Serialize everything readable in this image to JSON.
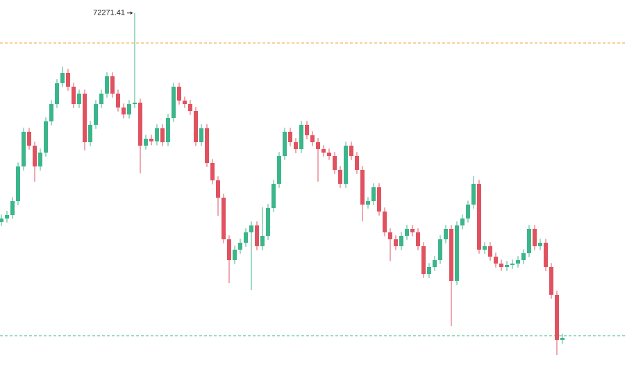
{
  "chart_data": {
    "type": "candlestick",
    "up_color": "#3bb58a",
    "down_color": "#e0525f",
    "ylim": [
      66000,
      72500
    ],
    "open": [
      68590,
      68651,
      68712,
      68957,
      69568,
      70179,
      69934,
      69568,
      69812,
      70362,
      70667,
      71034,
      71217,
      70973,
      70667,
      70851,
      69995,
      70301,
      70667,
      70851,
      71156,
      70851,
      70606,
      70484,
      70667,
      70692,
      69934,
      70056,
      70010,
      70240,
      69995,
      70423,
      70973,
      70728,
      70667,
      70545,
      69995,
      70240,
      69629,
      69323,
      69018,
      68285,
      67918,
      68102,
      68224,
      68407,
      68529,
      68163,
      68346,
      68835,
      69262,
      69751,
      70179,
      69995,
      69873,
      70301,
      70117,
      69995,
      69873,
      69812,
      69751,
      69507,
      69262,
      69934,
      69751,
      69507,
      68896,
      68957,
      69201,
      68774,
      68407,
      68285,
      68163,
      68346,
      68468,
      68407,
      68163,
      67674,
      67796,
      67918,
      68285,
      68468,
      67552,
      68529,
      68651,
      68896,
      69262,
      68102,
      68163,
      67979,
      67857,
      67796,
      67833,
      67857,
      67918,
      68040,
      68468,
      68163,
      68224,
      67796,
      67307,
      66513
    ],
    "high": [
      68721,
      68782,
      69027,
      69638,
      70249,
      70249,
      70004,
      69882,
      70432,
      70737,
      71104,
      71330,
      71287,
      71043,
      70921,
      70921,
      70371,
      70737,
      70921,
      71226,
      71226,
      70921,
      70676,
      70737,
      72271.41,
      70762,
      70126,
      70126,
      70310,
      70310,
      70493,
      71043,
      71043,
      70798,
      70737,
      70615,
      70310,
      70310,
      69699,
      69393,
      69088,
      68355,
      68172,
      68294,
      68477,
      68599,
      68599,
      68850,
      68905,
      69332,
      69821,
      70249,
      70249,
      70065,
      70371,
      70371,
      70187,
      70065,
      69943,
      69882,
      69821,
      69577,
      70004,
      70004,
      69821,
      69577,
      69027,
      69271,
      69271,
      68844,
      68477,
      68355,
      68416,
      68538,
      68538,
      68477,
      68233,
      67866,
      67988,
      68355,
      68538,
      68538,
      68599,
      68721,
      68966,
      69400,
      69332,
      68233,
      68233,
      68049,
      67927,
      67903,
      67927,
      67988,
      68110,
      68538,
      68538,
      68294,
      68294,
      67866,
      67377,
      66620
    ],
    "low": [
      68520,
      68581,
      68642,
      68887,
      69498,
      69864,
      69300,
      69498,
      69742,
      70292,
      70597,
      70964,
      70903,
      70597,
      70597,
      69850,
      69925,
      70231,
      70597,
      70781,
      70781,
      70536,
      70414,
      70414,
      70597,
      69446,
      69864,
      69940,
      69940,
      69925,
      69925,
      70353,
      70658,
      70597,
      70475,
      69925,
      69925,
      69559,
      69253,
      68700,
      68215,
      67515,
      67848,
      68032,
      68154,
      67393,
      68093,
      68093,
      68276,
      68765,
      69192,
      69681,
      69925,
      69803,
      69803,
      70047,
      69925,
      69300,
      69742,
      69681,
      69437,
      69192,
      69192,
      69681,
      69437,
      68600,
      68826,
      68887,
      68704,
      68337,
      67900,
      68093,
      68093,
      68276,
      68337,
      68093,
      67604,
      67604,
      67726,
      67848,
      68215,
      66757,
      67482,
      68459,
      68581,
      68826,
      68032,
      68032,
      67909,
      67787,
      67726,
      67726,
      67763,
      67787,
      67848,
      67970,
      68093,
      68093,
      67726,
      67237,
      66245,
      66443
    ],
    "close": [
      68651,
      68712,
      68957,
      69568,
      70179,
      69934,
      69568,
      69812,
      70362,
      70667,
      71034,
      71217,
      70973,
      70667,
      70851,
      69995,
      70301,
      70667,
      70851,
      71156,
      70851,
      70606,
      70484,
      70667,
      70692,
      69934,
      70056,
      70010,
      70240,
      69995,
      70423,
      70973,
      70728,
      70667,
      70545,
      69995,
      70240,
      69629,
      69323,
      69018,
      68285,
      67918,
      68102,
      68224,
      68407,
      68529,
      68163,
      68346,
      68835,
      69262,
      69751,
      70179,
      69995,
      69873,
      70301,
      70117,
      69995,
      69873,
      69812,
      69751,
      69507,
      69262,
      69934,
      69751,
      69507,
      68896,
      68957,
      69201,
      68774,
      68407,
      68285,
      68163,
      68346,
      68468,
      68407,
      68163,
      67674,
      67796,
      67918,
      68285,
      68468,
      67552,
      68529,
      68651,
      68896,
      69262,
      68102,
      68163,
      67979,
      67857,
      67796,
      67833,
      67857,
      67918,
      68040,
      68468,
      68163,
      68224,
      67796,
      67307,
      66513,
      66550
    ],
    "price_lines": [
      {
        "value": 71742,
        "color": "#f0a030"
      },
      {
        "value": 66586,
        "color": "#3bb58a"
      }
    ],
    "max_label_index": 24
  }
}
